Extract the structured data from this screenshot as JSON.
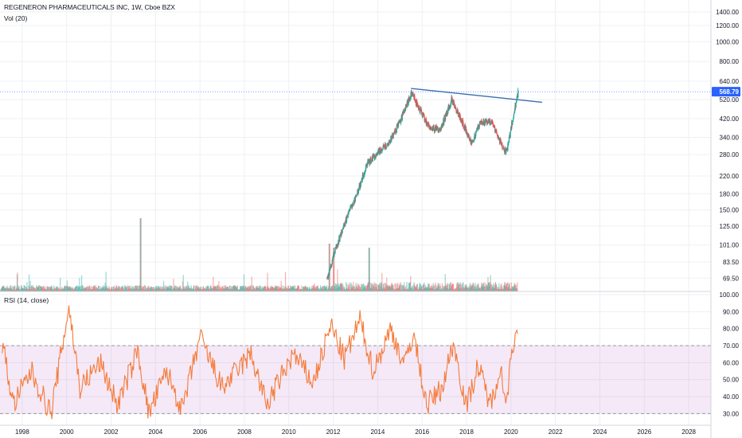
{
  "header": {
    "symbol_line": "REGENERON PHARMACEUTICALS INC, 1W, Cboe BZX",
    "volume_label": "Vol (20)",
    "rsi_label": "RSI (14, close)"
  },
  "price_axis": {
    "scale": "log",
    "ticks": [
      "1400.00",
      "1200.00",
      "1000.00",
      "800.00",
      "640.00",
      "520.00",
      "420.00",
      "340.00",
      "280.00",
      "220.00",
      "180.00",
      "150.00",
      "125.00",
      "101.00",
      "83.50",
      "69.50"
    ],
    "last_price_label": "568.79",
    "last_price_color": "#2962ff"
  },
  "rsi_axis": {
    "ticks": [
      "100.00",
      "90.00",
      "80.00",
      "70.00",
      "60.00",
      "50.00",
      "40.00",
      "30.00"
    ],
    "upper_band": 70,
    "lower_band": 30
  },
  "time_axis": {
    "ticks": [
      "1998",
      "2000",
      "2002",
      "2004",
      "2006",
      "2008",
      "2010",
      "2012",
      "2014",
      "2016",
      "2018",
      "2020",
      "2022",
      "2024",
      "2026",
      "2028"
    ]
  },
  "colors": {
    "up": "#26a69a",
    "down": "#ef5350",
    "rsi_line": "#f57c3c",
    "rsi_band": "#9c27b0",
    "trendline": "#3a6fb0",
    "grid": "#eef0f3"
  },
  "chart_data": [
    {
      "type": "candlestick",
      "title": "REGENERON PHARMACEUTICALS INC, 1W, Cboe BZX",
      "y_scale": "log",
      "ylim": [
        62,
        1600
      ],
      "xlim": [
        1997.0,
        2029.0
      ],
      "last_price": 568.79,
      "approx_close_path": [
        {
          "x": 2011.7,
          "y": 69.5
        },
        {
          "x": 2012.0,
          "y": 90
        },
        {
          "x": 2012.5,
          "y": 130
        },
        {
          "x": 2013.0,
          "y": 175
        },
        {
          "x": 2013.5,
          "y": 250
        },
        {
          "x": 2014.0,
          "y": 290
        },
        {
          "x": 2014.5,
          "y": 320
        },
        {
          "x": 2015.0,
          "y": 410
        },
        {
          "x": 2015.5,
          "y": 560
        },
        {
          "x": 2015.9,
          "y": 460
        },
        {
          "x": 2016.3,
          "y": 380
        },
        {
          "x": 2016.8,
          "y": 370
        },
        {
          "x": 2017.3,
          "y": 520
        },
        {
          "x": 2017.8,
          "y": 400
        },
        {
          "x": 2018.2,
          "y": 320
        },
        {
          "x": 2018.6,
          "y": 400
        },
        {
          "x": 2019.1,
          "y": 410
        },
        {
          "x": 2019.6,
          "y": 300
        },
        {
          "x": 2019.8,
          "y": 290
        },
        {
          "x": 2020.0,
          "y": 390
        },
        {
          "x": 2020.3,
          "y": 568.79
        }
      ],
      "trendline": [
        {
          "x": 2015.5,
          "y": 590
        },
        {
          "x": 2021.4,
          "y": 505
        }
      ]
    },
    {
      "type": "line",
      "title": "RSI (14, close)",
      "ylim": [
        25,
        100
      ],
      "bands": [
        30,
        70
      ],
      "approx_points": [
        {
          "x": 1997.1,
          "y": 72
        },
        {
          "x": 1997.6,
          "y": 35
        },
        {
          "x": 1998.4,
          "y": 55
        },
        {
          "x": 1999.3,
          "y": 30
        },
        {
          "x": 2000.1,
          "y": 93
        },
        {
          "x": 2000.6,
          "y": 45
        },
        {
          "x": 2001.5,
          "y": 60
        },
        {
          "x": 2002.3,
          "y": 35
        },
        {
          "x": 2003.2,
          "y": 67
        },
        {
          "x": 2003.7,
          "y": 30
        },
        {
          "x": 2004.5,
          "y": 55
        },
        {
          "x": 2005.2,
          "y": 32
        },
        {
          "x": 2006.0,
          "y": 75
        },
        {
          "x": 2007.0,
          "y": 45
        },
        {
          "x": 2008.3,
          "y": 65
        },
        {
          "x": 2009.0,
          "y": 35
        },
        {
          "x": 2010.2,
          "y": 65
        },
        {
          "x": 2011.1,
          "y": 48
        },
        {
          "x": 2011.9,
          "y": 82
        },
        {
          "x": 2012.5,
          "y": 62
        },
        {
          "x": 2013.2,
          "y": 85
        },
        {
          "x": 2013.8,
          "y": 55
        },
        {
          "x": 2014.6,
          "y": 80
        },
        {
          "x": 2015.2,
          "y": 58
        },
        {
          "x": 2015.6,
          "y": 78
        },
        {
          "x": 2016.2,
          "y": 35
        },
        {
          "x": 2016.9,
          "y": 45
        },
        {
          "x": 2017.4,
          "y": 72
        },
        {
          "x": 2018.0,
          "y": 34
        },
        {
          "x": 2018.5,
          "y": 58
        },
        {
          "x": 2019.1,
          "y": 35
        },
        {
          "x": 2019.5,
          "y": 58
        },
        {
          "x": 2019.8,
          "y": 35
        },
        {
          "x": 2020.0,
          "y": 68
        },
        {
          "x": 2020.3,
          "y": 77
        }
      ]
    }
  ]
}
